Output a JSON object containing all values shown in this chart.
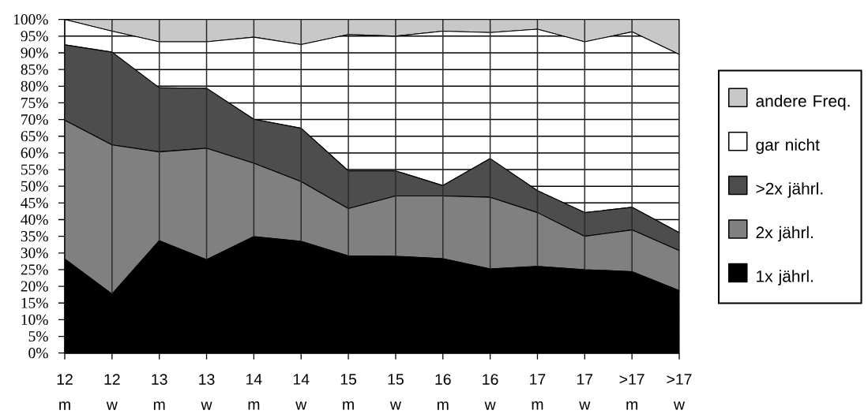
{
  "chart_data": {
    "type": "area",
    "stacked": true,
    "categories": [
      "12 m",
      "12 w",
      "13 m",
      "13 w",
      "14 m",
      "14 w",
      "15 m",
      "15 w",
      "16 m",
      "16 w",
      "17 m",
      "17 w",
      ">17 m",
      ">17 w"
    ],
    "series": [
      {
        "name": "1x jährl.",
        "color": "#000000",
        "values": [
          28.2,
          17.7,
          33.7,
          28.0,
          34.9,
          33.5,
          29.1,
          29.0,
          28.3,
          25.2,
          26.0,
          25.0,
          24.4,
          18.7
        ]
      },
      {
        "name": "2x jährl.",
        "color": "#808080",
        "values": [
          41.6,
          44.7,
          26.6,
          33.4,
          22.0,
          17.9,
          14.2,
          18.1,
          18.8,
          21.5,
          16.1,
          10.0,
          12.5,
          12.0
        ]
      },
      {
        "name": ">2x jährl.",
        "color": "#4d4d4d",
        "values": [
          22.6,
          27.8,
          19.2,
          18.0,
          13.2,
          16.0,
          11.3,
          7.5,
          3.1,
          11.6,
          6.6,
          7.1,
          6.8,
          5.4
        ]
      },
      {
        "name": "gar nicht",
        "color": "#ffffff",
        "values": [
          7.6,
          6.3,
          13.8,
          13.9,
          24.6,
          25.1,
          40.9,
          40.4,
          46.3,
          37.8,
          48.4,
          51.2,
          52.6,
          53.4
        ]
      },
      {
        "name": "andere Freq.",
        "color": "#c8c8c8",
        "values": [
          0.0,
          3.5,
          6.7,
          6.7,
          5.3,
          7.5,
          4.5,
          5.0,
          3.5,
          3.9,
          2.9,
          6.7,
          3.7,
          10.5
        ]
      }
    ],
    "ylim": [
      0,
      100
    ],
    "yticks": [
      {
        "value": 0,
        "label": "0%"
      },
      {
        "value": 5,
        "label": "5%"
      },
      {
        "value": 10,
        "label": "10%"
      },
      {
        "value": 15,
        "label": "15%"
      },
      {
        "value": 20,
        "label": "20%"
      },
      {
        "value": 25,
        "label": "25%"
      },
      {
        "value": 30,
        "label": "30%"
      },
      {
        "value": 35,
        "label": "35%"
      },
      {
        "value": 40,
        "label": "40%"
      },
      {
        "value": 45,
        "label": "45%"
      },
      {
        "value": 50,
        "label": "50%"
      },
      {
        "value": 55,
        "label": "55%"
      },
      {
        "value": 60,
        "label": "60%"
      },
      {
        "value": 65,
        "label": "65%"
      },
      {
        "value": 70,
        "label": "70%"
      },
      {
        "value": 75,
        "label": "75%"
      },
      {
        "value": 80,
        "label": "80%"
      },
      {
        "value": 85,
        "label": "85%"
      },
      {
        "value": 90,
        "label": "90%"
      },
      {
        "value": 95,
        "label": "95%"
      },
      {
        "value": 100,
        "label": "100%"
      }
    ],
    "grid": true,
    "legend": "right"
  }
}
